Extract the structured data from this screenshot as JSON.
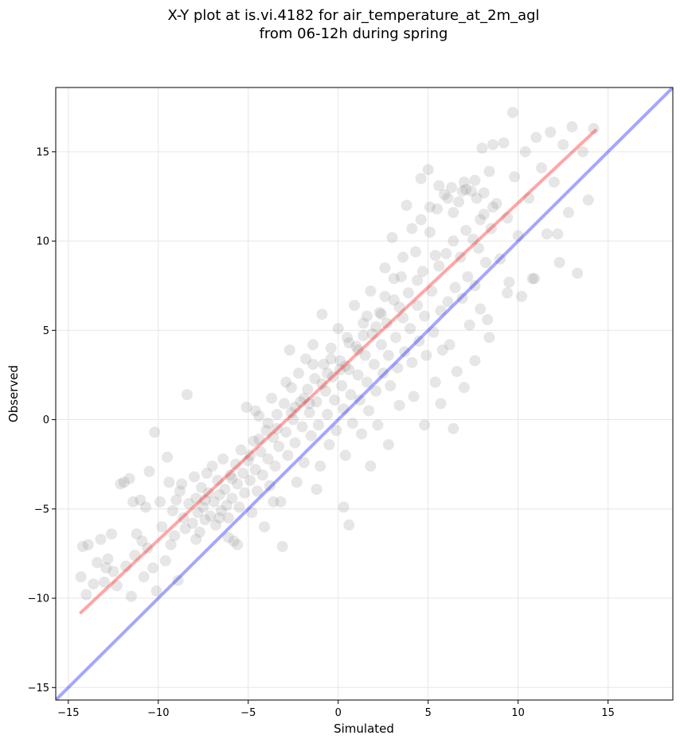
{
  "chart_data": {
    "type": "scatter",
    "title_lines": [
      "X-Y plot at is.vi.4182 for air_temperature_at_2m_agl",
      "from 06-12h during spring"
    ],
    "xlabel": "Simulated",
    "ylabel": "Observed",
    "xlim": [
      -15.7,
      18.6
    ],
    "ylim": [
      -15.7,
      18.6
    ],
    "xticks": [
      -15,
      -10,
      -5,
      0,
      5,
      10,
      15
    ],
    "yticks": [
      -15,
      -10,
      -5,
      0,
      5,
      10,
      15
    ],
    "xtick_labels": [
      "−15",
      "−10",
      "−5",
      "0",
      "5",
      "10",
      "15"
    ],
    "ytick_labels": [
      "−15",
      "−10",
      "−5",
      "0",
      "5",
      "10",
      "15"
    ],
    "grid": true,
    "point_color": "#808080",
    "reference_lines": [
      {
        "kind": "one_to_one",
        "color": "#0000ff",
        "x": [
          -15.7,
          18.6
        ],
        "y": [
          -15.7,
          18.6
        ]
      },
      {
        "kind": "fit",
        "color": "#ff0000",
        "x": [
          -14.3,
          14.3
        ],
        "y": [
          -10.8,
          16.2
        ]
      }
    ],
    "points": [
      [
        -14.2,
        -7.1
      ],
      [
        -14.3,
        -8.8
      ],
      [
        -14.0,
        -9.8
      ],
      [
        -13.9,
        -7.0
      ],
      [
        -13.6,
        -9.2
      ],
      [
        -13.4,
        -8.0
      ],
      [
        -13.2,
        -6.7
      ],
      [
        -13.0,
        -9.1
      ],
      [
        -12.8,
        -7.8
      ],
      [
        -12.6,
        -6.4
      ],
      [
        -12.5,
        -8.5
      ],
      [
        -12.3,
        -9.3
      ],
      [
        -12.1,
        -3.6
      ],
      [
        -11.9,
        -3.5
      ],
      [
        -11.8,
        -8.2
      ],
      [
        -11.6,
        -3.3
      ],
      [
        -11.5,
        -9.9
      ],
      [
        -11.3,
        -7.6
      ],
      [
        -11.2,
        -6.4
      ],
      [
        -11.0,
        -4.5
      ],
      [
        -10.9,
        -6.8
      ],
      [
        -10.8,
        -8.8
      ],
      [
        -10.6,
        -7.2
      ],
      [
        -10.5,
        -2.9
      ],
      [
        -10.3,
        -8.3
      ],
      [
        -10.2,
        -0.7
      ],
      [
        -10.1,
        -9.6
      ],
      [
        -9.9,
        -4.6
      ],
      [
        -9.8,
        -6.0
      ],
      [
        -9.6,
        -7.9
      ],
      [
        -9.5,
        -2.1
      ],
      [
        -9.4,
        -3.5
      ],
      [
        -9.2,
        -5.1
      ],
      [
        -9.1,
        -6.5
      ],
      [
        -9.0,
        -4.5
      ],
      [
        -8.9,
        -9.0
      ],
      [
        -8.7,
        -3.6
      ],
      [
        -8.6,
        -5.5
      ],
      [
        -8.5,
        -6.1
      ],
      [
        -8.4,
        1.4
      ],
      [
        -8.3,
        -4.7
      ],
      [
        -8.1,
        -5.8
      ],
      [
        -8.0,
        -3.2
      ],
      [
        -7.9,
        -4.4
      ],
      [
        -7.8,
        -5.2
      ],
      [
        -7.7,
        -6.3
      ],
      [
        -7.6,
        -3.8
      ],
      [
        -7.5,
        -4.9
      ],
      [
        -7.4,
        -5.6
      ],
      [
        -7.3,
        -3.0
      ],
      [
        -7.2,
        -4.1
      ],
      [
        -7.1,
        -5.4
      ],
      [
        -7.0,
        -2.6
      ],
      [
        -6.9,
        -4.6
      ],
      [
        -6.8,
        -5.9
      ],
      [
        -6.7,
        -3.4
      ],
      [
        -6.6,
        -4.2
      ],
      [
        -6.5,
        -5.1
      ],
      [
        -6.4,
        -2.2
      ],
      [
        -6.3,
        -3.9
      ],
      [
        -6.2,
        -4.8
      ],
      [
        -6.1,
        -5.5
      ],
      [
        -6.0,
        -3.1
      ],
      [
        -5.9,
        -4.4
      ],
      [
        -5.8,
        -6.8
      ],
      [
        -5.7,
        -2.5
      ],
      [
        -5.6,
        -3.6
      ],
      [
        -5.5,
        -4.9
      ],
      [
        -5.4,
        -1.7
      ],
      [
        -5.3,
        -3.0
      ],
      [
        -5.2,
        -4.1
      ],
      [
        -5.1,
        0.7
      ],
      [
        -5.0,
        -2.3
      ],
      [
        -4.9,
        -3.4
      ],
      [
        -4.8,
        -5.2
      ],
      [
        -4.7,
        -1.2
      ],
      [
        -4.6,
        -2.8
      ],
      [
        -4.5,
        -4.0
      ],
      [
        -4.4,
        0.2
      ],
      [
        -4.3,
        -1.8
      ],
      [
        -4.2,
        -3.1
      ],
      [
        -4.1,
        -6.0
      ],
      [
        -4.0,
        -0.6
      ],
      [
        -3.9,
        -2.2
      ],
      [
        -3.8,
        -3.7
      ],
      [
        -3.7,
        1.2
      ],
      [
        -3.6,
        -1.0
      ],
      [
        -3.5,
        -2.6
      ],
      [
        -3.4,
        0.3
      ],
      [
        -3.3,
        -1.5
      ],
      [
        -3.2,
        -4.6
      ],
      [
        -3.1,
        -7.1
      ],
      [
        -3.0,
        0.9
      ],
      [
        -2.9,
        -0.7
      ],
      [
        -2.8,
        -2.0
      ],
      [
        -2.7,
        3.9
      ],
      [
        -2.6,
        1.8
      ],
      [
        -2.5,
        0.0
      ],
      [
        -2.4,
        -1.3
      ],
      [
        -2.3,
        -3.5
      ],
      [
        -2.2,
        2.6
      ],
      [
        -2.1,
        1.0
      ],
      [
        -2.0,
        -0.4
      ],
      [
        -1.9,
        -2.4
      ],
      [
        -1.8,
        3.4
      ],
      [
        -1.7,
        1.7
      ],
      [
        -1.6,
        0.4
      ],
      [
        -1.5,
        -0.9
      ],
      [
        -1.4,
        4.2
      ],
      [
        -1.3,
        2.3
      ],
      [
        -1.2,
        1.0
      ],
      [
        -1.1,
        -0.3
      ],
      [
        -1.0,
        -2.6
      ],
      [
        -0.9,
        5.9
      ],
      [
        -0.8,
        3.1
      ],
      [
        -0.7,
        1.6
      ],
      [
        -0.6,
        0.3
      ],
      [
        -0.5,
        -1.4
      ],
      [
        -0.4,
        4.0
      ],
      [
        -0.3,
        2.4
      ],
      [
        -0.2,
        1.1
      ],
      [
        -0.1,
        -0.6
      ],
      [
        0.0,
        5.1
      ],
      [
        0.1,
        3.3
      ],
      [
        0.2,
        1.9
      ],
      [
        0.3,
        0.6
      ],
      [
        0.4,
        -2.0
      ],
      [
        0.5,
        4.6
      ],
      [
        0.6,
        2.8
      ],
      [
        0.7,
        1.4
      ],
      [
        0.8,
        -0.2
      ],
      [
        0.9,
        6.4
      ],
      [
        1.0,
        4.1
      ],
      [
        1.1,
        2.5
      ],
      [
        1.2,
        1.1
      ],
      [
        1.3,
        -0.8
      ],
      [
        1.4,
        5.4
      ],
      [
        1.5,
        3.6
      ],
      [
        1.6,
        2.1
      ],
      [
        1.7,
        0.5
      ],
      [
        1.8,
        7.2
      ],
      [
        1.9,
        4.8
      ],
      [
        2.0,
        3.1
      ],
      [
        2.1,
        1.6
      ],
      [
        2.2,
        -0.3
      ],
      [
        2.3,
        6.0
      ],
      [
        2.4,
        4.2
      ],
      [
        2.5,
        2.6
      ],
      [
        2.6,
        8.5
      ],
      [
        2.7,
        5.4
      ],
      [
        2.8,
        3.6
      ],
      [
        2.9,
        1.9
      ],
      [
        3.0,
        10.2
      ],
      [
        3.1,
        6.7
      ],
      [
        3.2,
        4.6
      ],
      [
        3.3,
        2.9
      ],
      [
        3.4,
        0.8
      ],
      [
        3.5,
        8.0
      ],
      [
        3.6,
        5.7
      ],
      [
        3.7,
        3.8
      ],
      [
        3.8,
        12.0
      ],
      [
        3.9,
        7.1
      ],
      [
        4.0,
        5.1
      ],
      [
        4.1,
        3.2
      ],
      [
        4.2,
        1.3
      ],
      [
        4.3,
        9.4
      ],
      [
        4.4,
        6.4
      ],
      [
        4.5,
        4.4
      ],
      [
        4.6,
        13.5
      ],
      [
        4.7,
        8.3
      ],
      [
        4.8,
        5.8
      ],
      [
        4.9,
        3.6
      ],
      [
        5.0,
        14.0
      ],
      [
        5.1,
        10.5
      ],
      [
        5.2,
        7.2
      ],
      [
        5.3,
        4.9
      ],
      [
        5.4,
        2.1
      ],
      [
        5.5,
        11.8
      ],
      [
        5.6,
        8.6
      ],
      [
        5.7,
        6.1
      ],
      [
        5.8,
        3.9
      ],
      [
        5.9,
        12.6
      ],
      [
        6.0,
        9.3
      ],
      [
        6.1,
        6.6
      ],
      [
        6.2,
        4.2
      ],
      [
        6.3,
        13.0
      ],
      [
        6.4,
        10.0
      ],
      [
        6.5,
        7.4
      ],
      [
        6.6,
        2.7
      ],
      [
        6.7,
        12.2
      ],
      [
        6.8,
        9.1
      ],
      [
        6.9,
        6.8
      ],
      [
        7.0,
        13.3
      ],
      [
        7.1,
        10.6
      ],
      [
        7.2,
        8.0
      ],
      [
        7.3,
        5.3
      ],
      [
        7.4,
        12.8
      ],
      [
        7.5,
        10.1
      ],
      [
        7.6,
        7.5
      ],
      [
        7.7,
        12.4
      ],
      [
        7.8,
        9.6
      ],
      [
        7.9,
        6.2
      ],
      [
        8.0,
        15.2
      ],
      [
        8.1,
        11.5
      ],
      [
        8.2,
        8.8
      ],
      [
        8.3,
        5.6
      ],
      [
        8.4,
        13.9
      ],
      [
        8.5,
        10.7
      ],
      [
        8.6,
        15.4
      ],
      [
        8.8,
        12.1
      ],
      [
        9.0,
        9.0
      ],
      [
        9.2,
        15.5
      ],
      [
        9.4,
        11.3
      ],
      [
        9.5,
        7.7
      ],
      [
        9.7,
        17.2
      ],
      [
        9.8,
        13.6
      ],
      [
        10.0,
        10.3
      ],
      [
        10.2,
        6.9
      ],
      [
        10.4,
        15.0
      ],
      [
        10.6,
        12.4
      ],
      [
        10.8,
        7.9
      ],
      [
        11.0,
        15.8
      ],
      [
        11.3,
        14.1
      ],
      [
        11.6,
        10.4
      ],
      [
        11.8,
        16.1
      ],
      [
        12.0,
        13.3
      ],
      [
        12.3,
        8.8
      ],
      [
        12.5,
        15.4
      ],
      [
        12.8,
        11.6
      ],
      [
        13.0,
        16.4
      ],
      [
        13.3,
        8.2
      ],
      [
        13.6,
        15.0
      ],
      [
        13.9,
        12.3
      ],
      [
        14.2,
        16.3
      ],
      [
        -12.9,
        -8.3
      ],
      [
        -10.7,
        -4.9
      ],
      [
        -8.8,
        -4.0
      ],
      [
        -7.9,
        -6.7
      ],
      [
        -6.1,
        -6.6
      ],
      [
        -5.6,
        -7.0
      ],
      [
        -4.6,
        0.5
      ],
      [
        -3.9,
        -0.2
      ],
      [
        -2.9,
        2.1
      ],
      [
        -2.4,
        0.7
      ],
      [
        -1.9,
        1.2
      ],
      [
        -1.4,
        3.1
      ],
      [
        -0.9,
        2.0
      ],
      [
        -0.4,
        3.4
      ],
      [
        0.1,
        2.8
      ],
      [
        0.6,
        4.3
      ],
      [
        1.1,
        3.9
      ],
      [
        1.6,
        5.8
      ],
      [
        2.1,
        5.2
      ],
      [
        2.6,
        6.9
      ],
      [
        3.1,
        7.9
      ],
      [
        3.6,
        9.1
      ],
      [
        4.1,
        10.7
      ],
      [
        4.6,
        11.2
      ],
      [
        5.1,
        11.9
      ],
      [
        5.6,
        13.1
      ],
      [
        6.1,
        12.4
      ],
      [
        7.1,
        12.9
      ],
      [
        7.6,
        13.4
      ],
      [
        8.1,
        12.7
      ],
      [
        8.6,
        11.9
      ],
      [
        -11.4,
        -4.6
      ],
      [
        -9.3,
        -7.0
      ],
      [
        -7.4,
        -4.5
      ],
      [
        -6.6,
        -5.5
      ],
      [
        -5.9,
        -3.3
      ],
      [
        -4.9,
        -2.0
      ],
      [
        -4.4,
        -1.1
      ],
      [
        -3.4,
        -0.5
      ],
      [
        -2.6,
        0.4
      ],
      [
        -1.6,
        0.9
      ],
      [
        -0.6,
        2.6
      ],
      [
        0.4,
        3.0
      ],
      [
        1.4,
        4.7
      ],
      [
        2.4,
        5.9
      ],
      [
        3.4,
        6.3
      ],
      [
        4.4,
        7.8
      ],
      [
        5.4,
        9.2
      ],
      [
        6.4,
        11.6
      ],
      [
        6.9,
        12.8
      ],
      [
        7.9,
        11.2
      ],
      [
        9.4,
        7.1
      ],
      [
        10.9,
        7.9
      ],
      [
        12.2,
        10.4
      ],
      [
        -3.6,
        -4.6
      ],
      [
        -1.2,
        -3.9
      ],
      [
        0.3,
        -4.9
      ],
      [
        0.6,
        -5.9
      ],
      [
        1.8,
        -2.6
      ],
      [
        2.8,
        -1.4
      ],
      [
        4.8,
        -0.3
      ],
      [
        5.7,
        0.9
      ],
      [
        6.4,
        -0.5
      ],
      [
        7.0,
        1.8
      ],
      [
        7.6,
        3.3
      ],
      [
        8.4,
        4.6
      ]
    ]
  }
}
